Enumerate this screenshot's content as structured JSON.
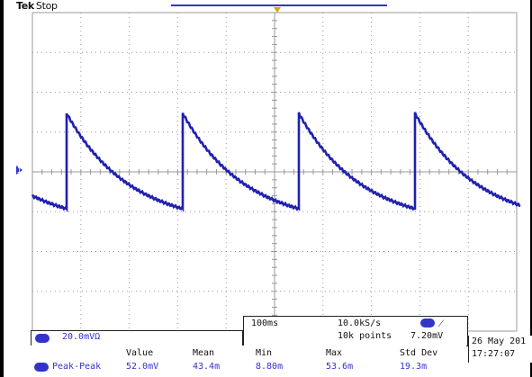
{
  "header": {
    "brand": "Tek",
    "run_state": "Stop"
  },
  "timebase": {
    "scale": "100ms",
    "sample_rate": "10.0kS/s",
    "record_length": "10k points"
  },
  "trigger": {
    "level": "7.20mV",
    "slope_icon": "rising-edge-icon"
  },
  "channel": {
    "number": "1",
    "scale": "20.0mV",
    "coupling_symbol": "Ω"
  },
  "datetime": {
    "date": "26 May 201",
    "time": "17:27:07"
  },
  "measurements": {
    "headers": [
      "Value",
      "Mean",
      "Min",
      "Max",
      "Std Dev"
    ],
    "row": {
      "name": "Peak-Peak",
      "values": [
        "52.0mV",
        "43.4m",
        "8.80m",
        "53.6m",
        "19.3m"
      ]
    }
  },
  "colors": {
    "trace": "#2020b0",
    "grid": "#9a9a9a",
    "trigger_marker": "#e0a000",
    "channel": "#3333cc"
  },
  "waveform": {
    "type": "sawtooth-decay",
    "periods_visible": 4.3,
    "peak": 53.6,
    "trough": 8.8
  }
}
